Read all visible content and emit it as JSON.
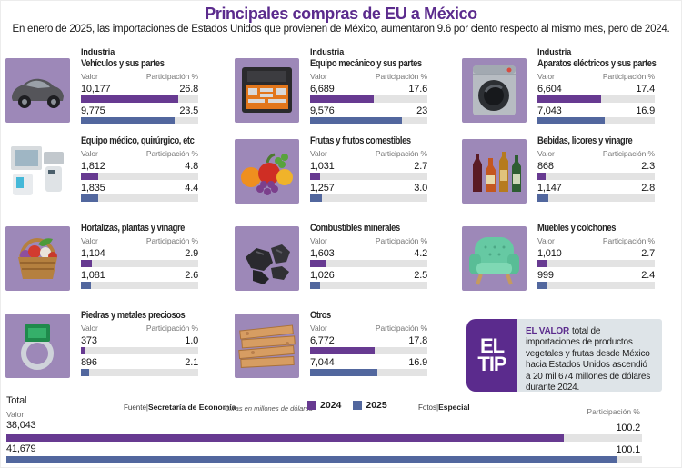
{
  "header": {
    "title": "Principales compras de EU a México",
    "subtitle": "En enero de 2025, las importaciones de Estados Unidos que provienen de México, aumentaron 9.6 por ciento respecto al mismo mes, pero de 2024."
  },
  "labels": {
    "industria": "Industria",
    "valor": "Valor",
    "participacion": "Participación %"
  },
  "colors": {
    "accent_purple": "#5b2b8d",
    "bar_2024": "#673a91",
    "bar_2025": "#52679e",
    "bar_track": "#e3e3e3",
    "image_bg": "#9d88b8",
    "tip_panel_bg": "#dee4e8"
  },
  "categories": [
    {
      "column": 0,
      "industria": true,
      "title": "Vehículos y sus partes",
      "icon": "car-icon",
      "icon_bg": "purple",
      "rows": [
        {
          "year": "2024",
          "valor": "10,177",
          "participacion": "26.8"
        },
        {
          "year": "2025",
          "valor": "9,775",
          "participacion": "23.5"
        }
      ]
    },
    {
      "column": 0,
      "industria": false,
      "title": "Equipo médico, quirúrgico, etc",
      "icon": "medical-equipment-icon",
      "icon_bg": "white",
      "rows": [
        {
          "year": "2024",
          "valor": "1,812",
          "participacion": "4.8"
        },
        {
          "year": "2025",
          "valor": "1,835",
          "participacion": "4.4"
        }
      ]
    },
    {
      "column": 0,
      "industria": false,
      "title": "Hortalizas, plantas y vinagre",
      "icon": "vegetable-basket-icon",
      "icon_bg": "purple",
      "rows": [
        {
          "year": "2024",
          "valor": "1,104",
          "participacion": "2.9"
        },
        {
          "year": "2025",
          "valor": "1,081",
          "participacion": "2.6"
        }
      ]
    },
    {
      "column": 0,
      "industria": false,
      "title": "Piedras y metales preciosos",
      "icon": "gem-ring-icon",
      "icon_bg": "purple",
      "rows": [
        {
          "year": "2024",
          "valor": "373",
          "participacion": "1.0"
        },
        {
          "year": "2025",
          "valor": "896",
          "participacion": "2.1"
        }
      ]
    },
    {
      "column": 1,
      "industria": true,
      "title": "Equipo mecánico y sus partes",
      "icon": "tool-kit-icon",
      "icon_bg": "purple",
      "rows": [
        {
          "year": "2024",
          "valor": "6,689",
          "participacion": "17.6"
        },
        {
          "year": "2025",
          "valor": "9,576",
          "participacion": "23"
        }
      ]
    },
    {
      "column": 1,
      "industria": false,
      "title": "Frutas y frutos comestibles",
      "icon": "fruits-icon",
      "icon_bg": "purple",
      "rows": [
        {
          "year": "2024",
          "valor": "1,031",
          "participacion": "2.7"
        },
        {
          "year": "2025",
          "valor": "1,257",
          "participacion": "3.0"
        }
      ]
    },
    {
      "column": 1,
      "industria": false,
      "title": "Combustibles minerales",
      "icon": "coal-icon",
      "icon_bg": "purple",
      "rows": [
        {
          "year": "2024",
          "valor": "1,603",
          "participacion": "4.2"
        },
        {
          "year": "2025",
          "valor": "1,026",
          "participacion": "2.5"
        }
      ]
    },
    {
      "column": 1,
      "industria": false,
      "title": "Otros",
      "icon": "wood-planks-icon",
      "icon_bg": "purple",
      "rows": [
        {
          "year": "2024",
          "valor": "6,772",
          "participacion": "17.8"
        },
        {
          "year": "2025",
          "valor": "7,044",
          "participacion": "16.9"
        }
      ]
    },
    {
      "column": 2,
      "industria": true,
      "title": "Aparatos eléctricos y sus partes",
      "icon": "washing-machine-icon",
      "icon_bg": "purple",
      "rows": [
        {
          "year": "2024",
          "valor": "6,604",
          "participacion": "17.4"
        },
        {
          "year": "2025",
          "valor": "7,043",
          "participacion": "16.9"
        }
      ]
    },
    {
      "column": 2,
      "industria": false,
      "title": "Bebidas, licores y vinagre",
      "icon": "liquor-bottles-icon",
      "icon_bg": "purple",
      "rows": [
        {
          "year": "2024",
          "valor": "868",
          "participacion": "2.3"
        },
        {
          "year": "2025",
          "valor": "1,147",
          "participacion": "2.8"
        }
      ]
    },
    {
      "column": 2,
      "industria": false,
      "title": "Muebles y colchones",
      "icon": "armchair-icon",
      "icon_bg": "purple",
      "rows": [
        {
          "year": "2024",
          "valor": "1,010",
          "participacion": "2.7"
        },
        {
          "year": "2025",
          "valor": "999",
          "participacion": "2.4"
        }
      ]
    }
  ],
  "total": {
    "label": "Total",
    "valor_label": "Valor",
    "participacion_label": "Participación %",
    "rows": [
      {
        "year": "2024",
        "valor": "38,043",
        "participacion": "100.2"
      },
      {
        "year": "2025",
        "valor": "41,679",
        "participacion": "100.1"
      }
    ]
  },
  "tip": {
    "badge": [
      "EL",
      "TIP"
    ],
    "lead": "EL VALOR",
    "text": "total de importaciones de productos vegetales y frutas desde México hacia Estados Unidos ascendió a 20 mil 674 millones de dólares durante 2024."
  },
  "footer": {
    "source_prefix": "Fuente|",
    "source": "Secretaría de Economía",
    "note": "Cifras en millones de dólares",
    "legend": [
      {
        "label": "2024",
        "color": "#673a91"
      },
      {
        "label": "2025",
        "color": "#52679e"
      }
    ],
    "photos_prefix": "Fotos|",
    "photos": "Especial"
  },
  "chart_data": {
    "type": "bar",
    "title": "Principales compras de EU a México",
    "subtitle": "En enero de 2025, las importaciones de Estados Unidos que provienen de México, aumentaron 9.6 por ciento respecto al mismo mes, pero de 2024.",
    "unit_note": "Cifras en millones de dólares",
    "legend_position": "bottom",
    "categories": [
      "Vehículos y sus partes",
      "Equipo médico, quirúrgico, etc",
      "Hortalizas, plantas y vinagre",
      "Piedras y metales preciosos",
      "Equipo mecánico y sus partes",
      "Frutas y frutos comestibles",
      "Combustibles minerales",
      "Otros",
      "Aparatos eléctricos y sus partes",
      "Bebidas, licores y vinagre",
      "Muebles y colchones",
      "Total"
    ],
    "series": [
      {
        "name": "2024",
        "metric": "valor_millones_usd",
        "values": [
          10177,
          1812,
          1104,
          373,
          6689,
          1031,
          1603,
          6772,
          6604,
          868,
          1010,
          38043
        ]
      },
      {
        "name": "2025",
        "metric": "valor_millones_usd",
        "values": [
          9775,
          1835,
          1081,
          896,
          9576,
          1257,
          1026,
          7044,
          7043,
          1147,
          999,
          41679
        ]
      },
      {
        "name": "2024",
        "metric": "participacion_pct",
        "values": [
          26.8,
          4.8,
          2.9,
          1.0,
          17.6,
          2.7,
          4.2,
          17.8,
          17.4,
          2.3,
          2.7,
          100.2
        ]
      },
      {
        "name": "2025",
        "metric": "participacion_pct",
        "values": [
          23.5,
          4.4,
          2.6,
          2.1,
          23.0,
          3.0,
          2.5,
          16.9,
          16.9,
          2.8,
          2.4,
          100.1
        ]
      }
    ]
  }
}
